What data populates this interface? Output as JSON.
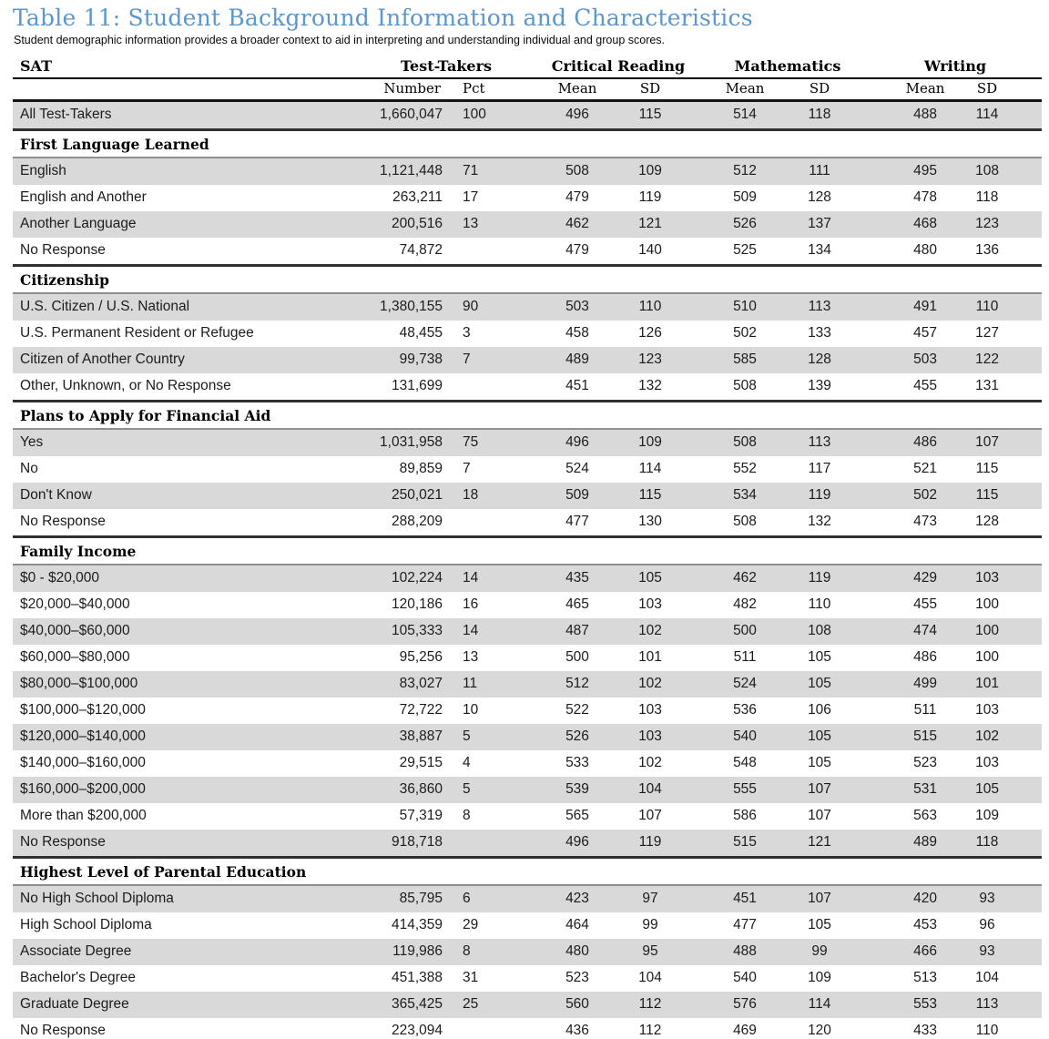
{
  "page": {
    "title": "Table 11: Student Background Information and Characteristics",
    "subtitle": "Student demographic information provides a broader context to aid in interpreting and understanding individual and group scores."
  },
  "table": {
    "corner_label": "SAT",
    "group_headers": [
      "Test-Takers",
      "Critical Reading",
      "Mathematics",
      "Writing"
    ],
    "sub_headers": [
      "Number",
      "Pct",
      "Mean",
      "SD",
      "Mean",
      "SD",
      "Mean",
      "SD"
    ],
    "summary_row": {
      "label": "All Test-Takers",
      "values": [
        "1,660,047",
        "100",
        "496",
        "115",
        "514",
        "118",
        "488",
        "114"
      ]
    },
    "sections": [
      {
        "title": "First Language Learned",
        "rows": [
          {
            "label": "English",
            "values": [
              "1,121,448",
              "71",
              "508",
              "109",
              "512",
              "111",
              "495",
              "108"
            ]
          },
          {
            "label": "English and Another",
            "values": [
              "263,211",
              "17",
              "479",
              "119",
              "509",
              "128",
              "478",
              "118"
            ]
          },
          {
            "label": "Another Language",
            "values": [
              "200,516",
              "13",
              "462",
              "121",
              "526",
              "137",
              "468",
              "123"
            ]
          },
          {
            "label": "No Response",
            "values": [
              "74,872",
              "",
              "479",
              "140",
              "525",
              "134",
              "480",
              "136"
            ]
          }
        ]
      },
      {
        "title": "Citizenship",
        "rows": [
          {
            "label": "U.S. Citizen / U.S. National",
            "values": [
              "1,380,155",
              "90",
              "503",
              "110",
              "510",
              "113",
              "491",
              "110"
            ]
          },
          {
            "label": "U.S. Permanent Resident or Refugee",
            "values": [
              "48,455",
              "3",
              "458",
              "126",
              "502",
              "133",
              "457",
              "127"
            ]
          },
          {
            "label": "Citizen of Another Country",
            "values": [
              "99,738",
              "7",
              "489",
              "123",
              "585",
              "128",
              "503",
              "122"
            ]
          },
          {
            "label": "Other, Unknown, or No Response",
            "values": [
              "131,699",
              "",
              "451",
              "132",
              "508",
              "139",
              "455",
              "131"
            ]
          }
        ]
      },
      {
        "title": "Plans to Apply for Financial Aid",
        "rows": [
          {
            "label": "Yes",
            "values": [
              "1,031,958",
              "75",
              "496",
              "109",
              "508",
              "113",
              "486",
              "107"
            ]
          },
          {
            "label": "No",
            "values": [
              "89,859",
              "7",
              "524",
              "114",
              "552",
              "117",
              "521",
              "115"
            ]
          },
          {
            "label": "Don't Know",
            "values": [
              "250,021",
              "18",
              "509",
              "115",
              "534",
              "119",
              "502",
              "115"
            ]
          },
          {
            "label": "No Response",
            "values": [
              "288,209",
              "",
              "477",
              "130",
              "508",
              "132",
              "473",
              "128"
            ]
          }
        ]
      },
      {
        "title": "Family Income",
        "rows": [
          {
            "label": "$0 - $20,000",
            "values": [
              "102,224",
              "14",
              "435",
              "105",
              "462",
              "119",
              "429",
              "103"
            ]
          },
          {
            "label": "$20,000–$40,000",
            "values": [
              "120,186",
              "16",
              "465",
              "103",
              "482",
              "110",
              "455",
              "100"
            ]
          },
          {
            "label": "$40,000–$60,000",
            "values": [
              "105,333",
              "14",
              "487",
              "102",
              "500",
              "108",
              "474",
              "100"
            ]
          },
          {
            "label": "$60,000–$80,000",
            "values": [
              "95,256",
              "13",
              "500",
              "101",
              "511",
              "105",
              "486",
              "100"
            ]
          },
          {
            "label": "$80,000–$100,000",
            "values": [
              "83,027",
              "11",
              "512",
              "102",
              "524",
              "105",
              "499",
              "101"
            ]
          },
          {
            "label": "$100,000–$120,000",
            "values": [
              "72,722",
              "10",
              "522",
              "103",
              "536",
              "106",
              "511",
              "103"
            ]
          },
          {
            "label": "$120,000–$140,000",
            "values": [
              "38,887",
              "5",
              "526",
              "103",
              "540",
              "105",
              "515",
              "102"
            ]
          },
          {
            "label": "$140,000–$160,000",
            "values": [
              "29,515",
              "4",
              "533",
              "102",
              "548",
              "105",
              "523",
              "103"
            ]
          },
          {
            "label": "$160,000–$200,000",
            "values": [
              "36,860",
              "5",
              "539",
              "104",
              "555",
              "107",
              "531",
              "105"
            ]
          },
          {
            "label": "More than $200,000",
            "values": [
              "57,319",
              "8",
              "565",
              "107",
              "586",
              "107",
              "563",
              "109"
            ]
          },
          {
            "label": "No Response",
            "values": [
              "918,718",
              "",
              "496",
              "119",
              "515",
              "121",
              "489",
              "118"
            ]
          }
        ]
      },
      {
        "title": "Highest Level of Parental Education",
        "rows": [
          {
            "label": "No High School Diploma",
            "values": [
              "85,795",
              "6",
              "423",
              "97",
              "451",
              "107",
              "420",
              "93"
            ]
          },
          {
            "label": "High School Diploma",
            "values": [
              "414,359",
              "29",
              "464",
              "99",
              "477",
              "105",
              "453",
              "96"
            ]
          },
          {
            "label": "Associate Degree",
            "values": [
              "119,986",
              "8",
              "480",
              "95",
              "488",
              "99",
              "466",
              "93"
            ]
          },
          {
            "label": "Bachelor's Degree",
            "values": [
              "451,388",
              "31",
              "523",
              "104",
              "540",
              "109",
              "513",
              "104"
            ]
          },
          {
            "label": "Graduate Degree",
            "values": [
              "365,425",
              "25",
              "560",
              "112",
              "576",
              "114",
              "553",
              "113"
            ]
          },
          {
            "label": "No Response",
            "values": [
              "223,094",
              "",
              "436",
              "112",
              "469",
              "120",
              "433",
              "110"
            ]
          }
        ]
      }
    ]
  },
  "colors": {
    "title_blue": "#5B97CF",
    "row_shade_gray": "#D9D9D9",
    "section_rule_dark": "#303030",
    "section_rule_gray": "#8E8E8E"
  }
}
